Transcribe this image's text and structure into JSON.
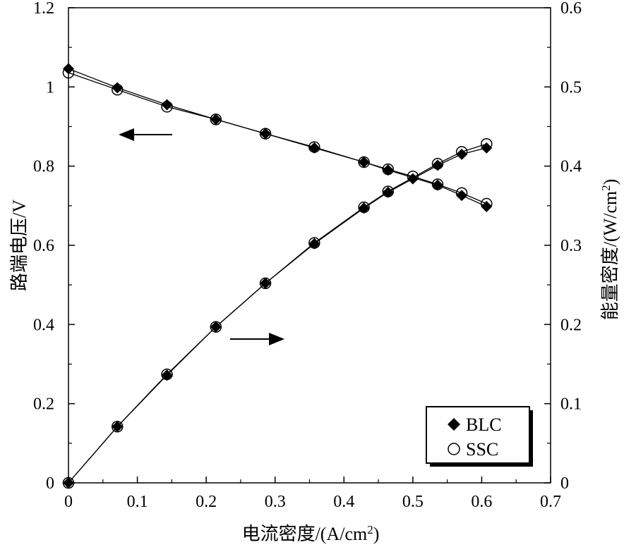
{
  "chart_data": {
    "type": "line",
    "xlabel": "电流密度/(A/cm",
    "xlabel_sup": "2",
    "xlabel_end": ")",
    "ylabel_left": "路端电压/V",
    "ylabel_right": "能量密度/(W/cm",
    "ylabel_right_sup": "2",
    "ylabel_right_end": ")",
    "xlim": [
      0,
      0.7
    ],
    "ylim_left": [
      0,
      1.2
    ],
    "ylim_right": [
      0,
      0.6
    ],
    "x_ticks": [
      "0",
      "0.1",
      "0.2",
      "0.3",
      "0.4",
      "0.5",
      "0.6",
      "0.7"
    ],
    "y_left_ticks": [
      "0",
      "0.2",
      "0.4",
      "0.6",
      "0.8",
      "1",
      "1.2"
    ],
    "y_right_ticks": [
      "0",
      "0.1",
      "0.2",
      "0.3",
      "0.4",
      "0.5",
      "0.6"
    ],
    "grid": false,
    "legend_position": "bottom-right",
    "series": [
      {
        "name": "BLC",
        "marker": "filled-diamond",
        "axis": "left",
        "x": [
          0,
          0.071,
          0.143,
          0.214,
          0.286,
          0.357,
          0.429,
          0.464,
          0.536,
          0.571,
          0.607
        ],
        "y": [
          1.046,
          0.998,
          0.955,
          0.918,
          0.882,
          0.846,
          0.81,
          0.79,
          0.752,
          0.726,
          0.698
        ]
      },
      {
        "name": "SSC",
        "marker": "open-circle",
        "axis": "left",
        "x": [
          0,
          0.071,
          0.143,
          0.214,
          0.286,
          0.357,
          0.429,
          0.464,
          0.5,
          0.536,
          0.571,
          0.607
        ],
        "y": [
          1.036,
          0.993,
          0.95,
          0.918,
          0.882,
          0.848,
          0.81,
          0.792,
          0.774,
          0.754,
          0.732,
          0.705
        ]
      },
      {
        "name": "BLC",
        "marker": "filled-diamond",
        "axis": "right",
        "x": [
          0,
          0.071,
          0.143,
          0.214,
          0.286,
          0.357,
          0.429,
          0.464,
          0.5,
          0.536,
          0.571,
          0.607
        ],
        "y": [
          0,
          0.071,
          0.136,
          0.197,
          0.252,
          0.302,
          0.347,
          0.367,
          0.384,
          0.401,
          0.415,
          0.423
        ]
      },
      {
        "name": "SSC",
        "marker": "open-circle",
        "axis": "right",
        "x": [
          0,
          0.071,
          0.143,
          0.214,
          0.286,
          0.357,
          0.429,
          0.464,
          0.536,
          0.571,
          0.607
        ],
        "y": [
          0,
          0.071,
          0.137,
          0.197,
          0.252,
          0.303,
          0.348,
          0.368,
          0.403,
          0.418,
          0.428
        ]
      }
    ],
    "legend": [
      {
        "label": "BLC",
        "marker": "filled-diamond"
      },
      {
        "label": "SSC",
        "marker": "open-circle"
      }
    ],
    "annotations": [
      {
        "type": "arrow",
        "direction": "left",
        "refers_to": "left-axis"
      },
      {
        "type": "arrow",
        "direction": "right",
        "refers_to": "right-axis"
      }
    ]
  }
}
